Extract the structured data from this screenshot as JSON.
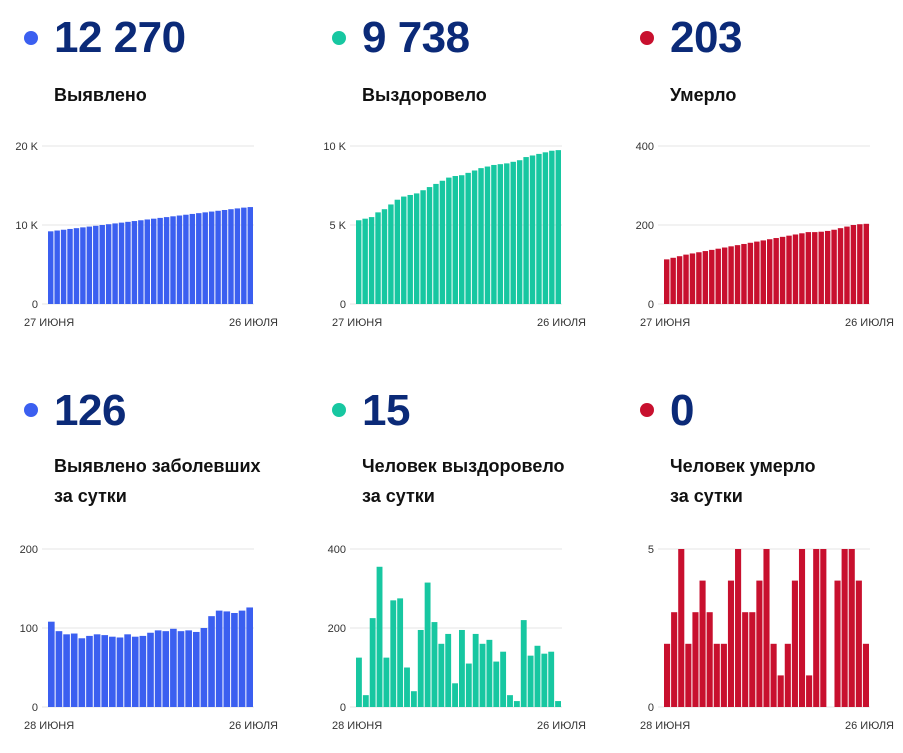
{
  "colors": {
    "blue": "#3b5ff0",
    "teal": "#17c7a1",
    "red": "#c8102e",
    "number": "#0b2a78"
  },
  "panels": [
    {
      "id": "detected",
      "value": "12 270",
      "label_line1": "Выявлено",
      "label_line2": "",
      "color": "#3b5ff0"
    },
    {
      "id": "recovered",
      "value": "9 738",
      "label_line1": "Выздоровело",
      "label_line2": "",
      "color": "#17c7a1"
    },
    {
      "id": "died",
      "value": "203",
      "label_line1": "Умерло",
      "label_line2": "",
      "color": "#c8102e"
    },
    {
      "id": "detected-daily",
      "value": "126",
      "label_line1": "Выявлено заболевших",
      "label_line2": "за сутки",
      "color": "#3b5ff0"
    },
    {
      "id": "recovered-daily",
      "value": "15",
      "label_line1": "Человек выздоровело",
      "label_line2": "за сутки",
      "color": "#17c7a1"
    },
    {
      "id": "died-daily",
      "value": "0",
      "label_line1": "Человек умерло",
      "label_line2": "за сутки",
      "color": "#c8102e"
    }
  ],
  "chart_data": [
    {
      "type": "bar",
      "title": "Выявлено",
      "color": "#3b5ff0",
      "x_start_label": "27 июня",
      "x_end_label": "26 июля",
      "y_ticks": [
        "0",
        "10 K",
        "20 K"
      ],
      "ylim": [
        0,
        20000
      ],
      "values": [
        9200,
        9300,
        9400,
        9500,
        9600,
        9700,
        9800,
        9900,
        10000,
        10100,
        10200,
        10300,
        10400,
        10500,
        10600,
        10700,
        10800,
        10900,
        11000,
        11100,
        11200,
        11300,
        11400,
        11500,
        11600,
        11700,
        11800,
        11900,
        12000,
        12100,
        12200,
        12270
      ]
    },
    {
      "type": "bar",
      "title": "Выздоровело",
      "color": "#17c7a1",
      "x_start_label": "27 июня",
      "x_end_label": "26 июля",
      "y_ticks": [
        "0",
        "5 K",
        "10 K"
      ],
      "ylim": [
        0,
        10000
      ],
      "values": [
        5300,
        5400,
        5500,
        5800,
        6000,
        6300,
        6600,
        6800,
        6900,
        7000,
        7200,
        7400,
        7600,
        7800,
        8000,
        8100,
        8150,
        8300,
        8450,
        8600,
        8700,
        8800,
        8850,
        8900,
        9000,
        9100,
        9300,
        9400,
        9500,
        9600,
        9700,
        9738
      ]
    },
    {
      "type": "bar",
      "title": "Умерло",
      "color": "#c8102e",
      "x_start_label": "27 июня",
      "x_end_label": "26 июля",
      "y_ticks": [
        "0",
        "200",
        "400"
      ],
      "ylim": [
        0,
        400
      ],
      "values": [
        113,
        117,
        121,
        125,
        128,
        131,
        134,
        137,
        140,
        143,
        146,
        149,
        152,
        155,
        158,
        161,
        164,
        167,
        170,
        173,
        176,
        179,
        182,
        182,
        183,
        185,
        188,
        192,
        196,
        200,
        202,
        203
      ]
    },
    {
      "type": "bar",
      "title": "Выявлено заболевших за сутки",
      "color": "#3b5ff0",
      "x_start_label": "28 июня",
      "x_end_label": "26 июля",
      "y_ticks": [
        "0",
        "100",
        "200"
      ],
      "ylim": [
        0,
        200
      ],
      "values": [
        108,
        96,
        92,
        93,
        87,
        90,
        92,
        91,
        89,
        88,
        92,
        89,
        90,
        94,
        97,
        96,
        99,
        96,
        97,
        95,
        100,
        115,
        122,
        121,
        119,
        122,
        126
      ]
    },
    {
      "type": "bar",
      "title": "Человек выздоровело за сутки",
      "color": "#17c7a1",
      "x_start_label": "28 июня",
      "x_end_label": "26 июля",
      "y_ticks": [
        "0",
        "200",
        "400"
      ],
      "ylim": [
        0,
        400
      ],
      "values": [
        125,
        30,
        225,
        355,
        125,
        270,
        275,
        100,
        40,
        195,
        315,
        215,
        160,
        185,
        60,
        195,
        110,
        185,
        160,
        170,
        115,
        140,
        30,
        15,
        220,
        130,
        155,
        135,
        140,
        15
      ]
    },
    {
      "type": "bar",
      "title": "Человек умерло за сутки",
      "color": "#c8102e",
      "x_start_label": "28 июня",
      "x_end_label": "26 июля",
      "y_ticks": [
        "0",
        "5"
      ],
      "ylim": [
        0,
        5
      ],
      "values": [
        2,
        3,
        5,
        2,
        3,
        4,
        3,
        2,
        2,
        4,
        5,
        3,
        3,
        4,
        5,
        2,
        1,
        2,
        4,
        5,
        1,
        5,
        5,
        0,
        4,
        5,
        5,
        4,
        2
      ]
    }
  ]
}
